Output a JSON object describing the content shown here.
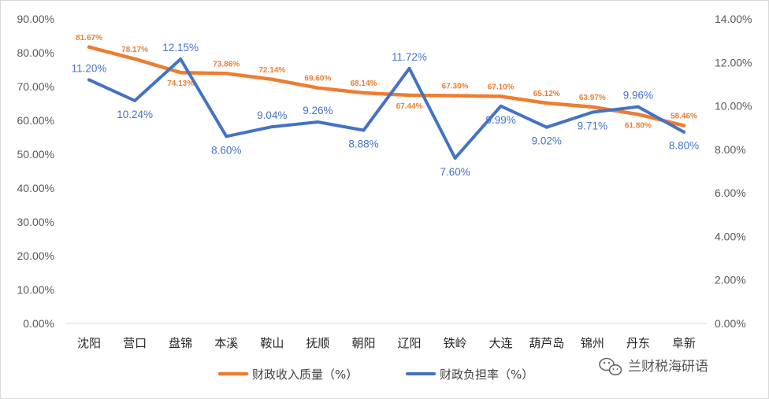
{
  "chart_data": {
    "type": "line",
    "categories": [
      "沈阳",
      "营口",
      "盘锦",
      "本溪",
      "鞍山",
      "抚顺",
      "朝阳",
      "辽阳",
      "铁岭",
      "大连",
      "葫芦岛",
      "锦州",
      "丹东",
      "阜新"
    ],
    "series": [
      {
        "name": "财政收入质量（%）",
        "axis": "left",
        "color": "#ED7D31",
        "values": [
          81.67,
          78.17,
          74.13,
          73.86,
          72.14,
          69.6,
          68.14,
          67.44,
          67.3,
          67.1,
          65.12,
          63.97,
          61.8,
          58.46
        ],
        "labels": [
          "81.67%",
          "78.17%",
          "74.13%",
          "73.86%",
          "72.14%",
          "69.60%",
          "68.14%",
          "67.44%",
          "67.30%",
          "67.10%",
          "65.12%",
          "63.97%",
          "61.80%",
          "58.46%"
        ]
      },
      {
        "name": "财政负担率（%）",
        "axis": "right",
        "color": "#4472C4",
        "values": [
          11.2,
          10.24,
          12.15,
          8.6,
          9.04,
          9.26,
          8.88,
          11.72,
          7.6,
          9.99,
          9.02,
          9.71,
          9.96,
          8.8
        ],
        "labels": [
          "11.20%",
          "10.24%",
          "12.15%",
          "8.60%",
          "9.04%",
          "9.26%",
          "8.88%",
          "11.72%",
          "7.60%",
          "9.99%",
          "9.02%",
          "9.71%",
          "9.96%",
          "8.80%"
        ]
      }
    ],
    "y_left": {
      "min": 0,
      "max": 90,
      "step": 10,
      "ticks": [
        "0.00%",
        "10.00%",
        "20.00%",
        "30.00%",
        "40.00%",
        "50.00%",
        "60.00%",
        "70.00%",
        "80.00%",
        "90.00%"
      ]
    },
    "y_right": {
      "min": 0,
      "max": 14,
      "step": 2,
      "ticks": [
        "0.00%",
        "2.00%",
        "4.00%",
        "6.00%",
        "8.00%",
        "10.00%",
        "12.00%",
        "14.00%"
      ]
    },
    "grid": false,
    "legend": "bottom",
    "title": "",
    "xlabel": "",
    "ylabel": ""
  },
  "watermark": {
    "text": "兰财税海研语",
    "icon": "wechat-icon"
  }
}
